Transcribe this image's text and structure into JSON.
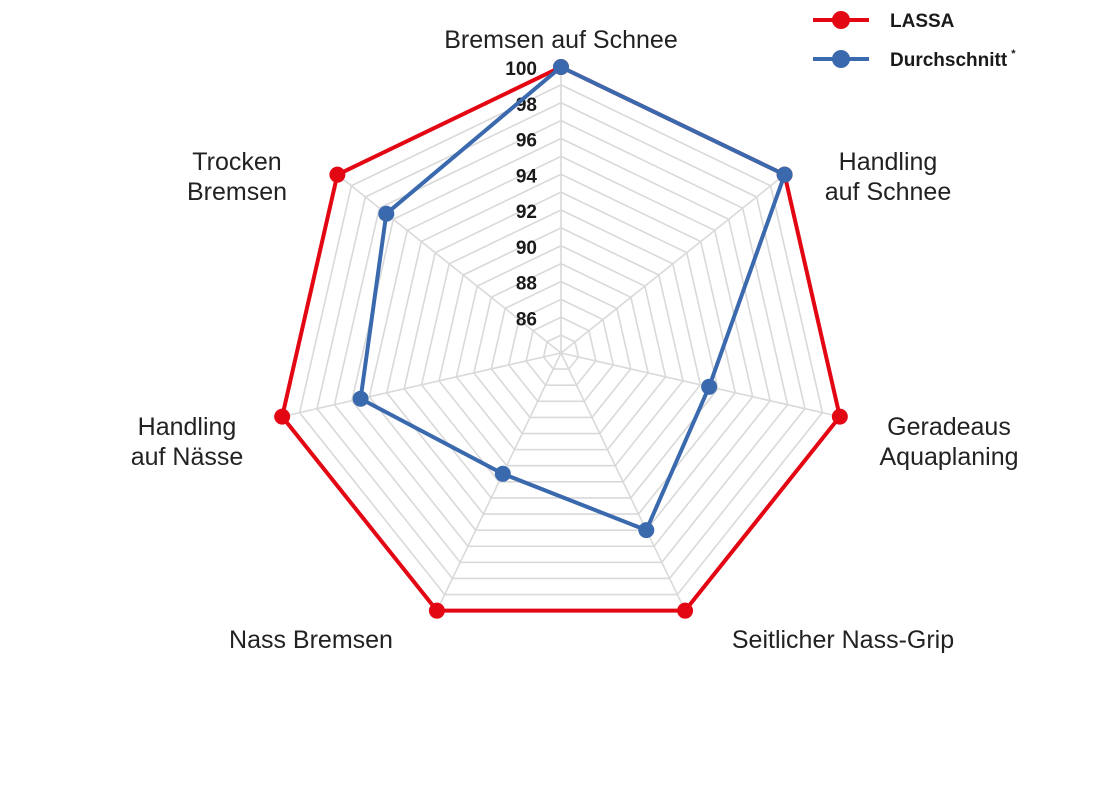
{
  "chart_data": {
    "type": "radar",
    "title": "",
    "axes": [
      "Bremsen auf Schnee",
      "Handling auf Schnee",
      "Geradeaus Aquaplaning",
      "Seitlicher Nass-Grip",
      "Nass Bremsen",
      "Handling auf Nässe",
      "Trocken Bremsen"
    ],
    "axis_label_lines": [
      [
        "Bremsen auf Schnee"
      ],
      [
        "Handling",
        "auf Schnee"
      ],
      [
        "Geradeaus",
        "Aquaplaning"
      ],
      [
        "Seitlicher Nass-Grip"
      ],
      [
        "Nass Bremsen"
      ],
      [
        "Handling",
        "auf Nässe"
      ],
      [
        "Trocken",
        "Bremsen"
      ]
    ],
    "r_ticks": [
      86,
      88,
      90,
      92,
      94,
      96,
      98,
      100
    ],
    "r_range": [
      84,
      100
    ],
    "grid": true,
    "legend_position": "top-right",
    "series": [
      {
        "name": "LASSA",
        "color": "#e30613",
        "values": [
          100,
          100,
          100,
          100,
          100,
          100,
          100
        ]
      },
      {
        "name": "Durchschnitt",
        "name_superscript": "*",
        "color": "#3a6aad",
        "values": [
          100,
          100,
          92.5,
          95,
          91.5,
          95.5,
          96.5
        ]
      }
    ]
  }
}
